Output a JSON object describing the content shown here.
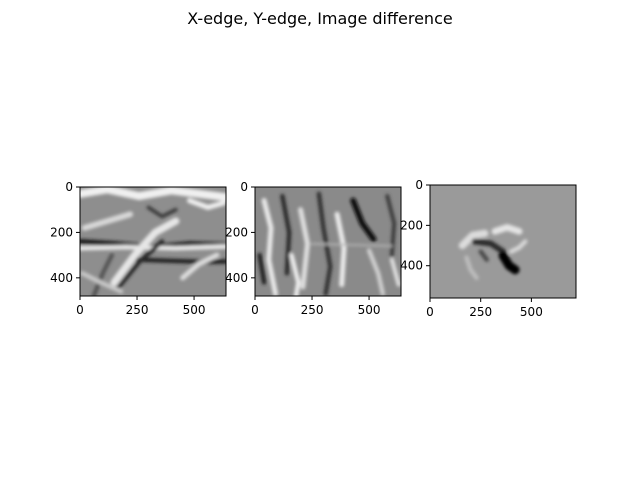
{
  "figure": {
    "suptitle": "X-edge, Y-edge, Image difference",
    "background": "#ffffff",
    "axes_color": "#000000"
  },
  "chart_data": [
    {
      "type": "heatmap",
      "title": "",
      "colormap": "gray",
      "xlim": [
        0,
        640
      ],
      "ylim": [
        480,
        0
      ],
      "x_ticks": [
        0,
        250,
        500
      ],
      "y_ticks": [
        0,
        200,
        400
      ],
      "image": {
        "base_color": "#8e8e8e",
        "content": "Sobel x-direction edge response of a photo: vertical/horizontal gradient texture, dark horizontal bands near y≈260 and y≈330",
        "strokes": [
          {
            "pts": [
              [
                0,
                30
              ],
              [
                120,
                10
              ],
              [
                260,
                40
              ],
              [
                400,
                15
              ],
              [
                640,
                45
              ]
            ],
            "shade": "#f0f0f0",
            "w": 0.055
          },
          {
            "pts": [
              [
                0,
                240
              ],
              [
                160,
                250
              ],
              [
                320,
                265
              ],
              [
                480,
                250
              ],
              [
                640,
                255
              ]
            ],
            "shade": "#1a1a1a",
            "w": 0.035
          },
          {
            "pts": [
              [
                0,
                270
              ],
              [
                200,
                265
              ],
              [
                420,
                270
              ],
              [
                640,
                262
              ]
            ],
            "shade": "#e8e8e8",
            "w": 0.03
          },
          {
            "pts": [
              [
                250,
                320
              ],
              [
                400,
                325
              ],
              [
                560,
                330
              ],
              [
                640,
                328
              ]
            ],
            "shade": "#202020",
            "w": 0.03
          },
          {
            "pts": [
              [
                150,
                420
              ],
              [
                240,
                300
              ],
              [
                330,
                200
              ],
              [
                420,
                150
              ]
            ],
            "shade": "#e6e6e6",
            "w": 0.05
          },
          {
            "pts": [
              [
                170,
                440
              ],
              [
                260,
                330
              ],
              [
                360,
                240
              ]
            ],
            "shade": "#2a2a2a",
            "w": 0.03
          },
          {
            "pts": [
              [
                20,
                180
              ],
              [
                120,
                150
              ],
              [
                220,
                120
              ]
            ],
            "shade": "#d8d8d8",
            "w": 0.04
          },
          {
            "pts": [
              [
                60,
                480
              ],
              [
                100,
                380
              ],
              [
                140,
                300
              ]
            ],
            "shade": "#555555",
            "w": 0.03
          },
          {
            "pts": [
              [
                450,
                400
              ],
              [
                520,
                340
              ],
              [
                600,
                300
              ]
            ],
            "shade": "#dcdcdc",
            "w": 0.035
          },
          {
            "pts": [
              [
                300,
                90
              ],
              [
                360,
                130
              ],
              [
                420,
                100
              ]
            ],
            "shade": "#3a3a3a",
            "w": 0.025
          },
          {
            "pts": [
              [
                480,
                60
              ],
              [
                560,
                90
              ],
              [
                630,
                70
              ]
            ],
            "shade": "#efefef",
            "w": 0.035
          },
          {
            "pts": [
              [
                10,
                380
              ],
              [
                90,
                420
              ],
              [
                180,
                460
              ]
            ],
            "shade": "#c8c8c8",
            "w": 0.03
          }
        ]
      }
    },
    {
      "type": "heatmap",
      "title": "",
      "colormap": "gray",
      "xlim": [
        0,
        640
      ],
      "ylim": [
        480,
        0
      ],
      "x_ticks": [
        0,
        250,
        500
      ],
      "y_ticks": [
        0,
        200,
        400
      ],
      "image": {
        "base_color": "#8a8a8a",
        "content": "Sobel y-direction edge response: many near-vertical light/dark streaks",
        "strokes": [
          {
            "pts": [
              [
                40,
                60
              ],
              [
                70,
                180
              ],
              [
                60,
                320
              ],
              [
                90,
                470
              ]
            ],
            "shade": "#e8e8e8",
            "w": 0.035
          },
          {
            "pts": [
              [
                120,
                40
              ],
              [
                150,
                200
              ],
              [
                140,
                380
              ]
            ],
            "shade": "#2a2a2a",
            "w": 0.03
          },
          {
            "pts": [
              [
                200,
                100
              ],
              [
                230,
                250
              ],
              [
                210,
                440
              ]
            ],
            "shade": "#dedede",
            "w": 0.035
          },
          {
            "pts": [
              [
                280,
                30
              ],
              [
                300,
                180
              ],
              [
                330,
                350
              ],
              [
                310,
                470
              ]
            ],
            "shade": "#333333",
            "w": 0.03
          },
          {
            "pts": [
              [
                360,
                120
              ],
              [
                390,
                270
              ],
              [
                380,
                430
              ]
            ],
            "shade": "#eaeaea",
            "w": 0.035
          },
          {
            "pts": [
              [
                430,
                60
              ],
              [
                470,
                160
              ],
              [
                520,
                230
              ]
            ],
            "shade": "#111111",
            "w": 0.04
          },
          {
            "pts": [
              [
                500,
                280
              ],
              [
                540,
                380
              ],
              [
                560,
                470
              ]
            ],
            "shade": "#d0d0d0",
            "w": 0.03
          },
          {
            "pts": [
              [
                580,
                40
              ],
              [
                610,
                160
              ],
              [
                600,
                300
              ]
            ],
            "shade": "#3c3c3c",
            "w": 0.028
          },
          {
            "pts": [
              [
                20,
                300
              ],
              [
                40,
                420
              ]
            ],
            "shade": "#222222",
            "w": 0.03
          },
          {
            "pts": [
              [
                160,
                300
              ],
              [
                190,
                420
              ],
              [
                180,
                480
              ]
            ],
            "shade": "#f0f0f0",
            "w": 0.03
          },
          {
            "pts": [
              [
                250,
                250
              ],
              [
                600,
                260
              ]
            ],
            "shade": "#b4b4b4",
            "w": 0.012
          },
          {
            "pts": [
              [
                600,
                320
              ],
              [
                630,
                430
              ]
            ],
            "shade": "#e0e0e0",
            "w": 0.028
          }
        ]
      }
    },
    {
      "type": "heatmap",
      "title": "",
      "colormap": "gray",
      "xlim": [
        0,
        720
      ],
      "ylim": [
        560,
        0
      ],
      "x_ticks": [
        0,
        250,
        500
      ],
      "y_ticks": [
        0,
        200,
        400
      ],
      "image": {
        "base_color": "#9a9a9a",
        "content": "Difference of two blurred images: mostly flat gray with a blob near (300,300)",
        "strokes": [
          {
            "pts": [
              [
                160,
                300
              ],
              [
                210,
                250
              ],
              [
                270,
                240
              ]
            ],
            "shade": "#dcdcdc",
            "w": 0.05
          },
          {
            "pts": [
              [
                220,
                280
              ],
              [
                300,
                290
              ],
              [
                360,
                330
              ]
            ],
            "shade": "#2a2a2a",
            "w": 0.04
          },
          {
            "pts": [
              [
                320,
                230
              ],
              [
                380,
                210
              ],
              [
                440,
                230
              ]
            ],
            "shade": "#e4e4e4",
            "w": 0.045
          },
          {
            "pts": [
              [
                360,
                350
              ],
              [
                390,
                400
              ],
              [
                420,
                420
              ]
            ],
            "shade": "#000000",
            "w": 0.06
          },
          {
            "pts": [
              [
                400,
                330
              ],
              [
                440,
                310
              ],
              [
                470,
                280
              ]
            ],
            "shade": "#d8d8d8",
            "w": 0.03
          },
          {
            "pts": [
              [
                180,
                360
              ],
              [
                200,
                420
              ],
              [
                230,
                460
              ]
            ],
            "shade": "#bdbdbd",
            "w": 0.03
          },
          {
            "pts": [
              [
                250,
                330
              ],
              [
                280,
                370
              ]
            ],
            "shade": "#4a4a4a",
            "w": 0.03
          }
        ]
      }
    }
  ]
}
